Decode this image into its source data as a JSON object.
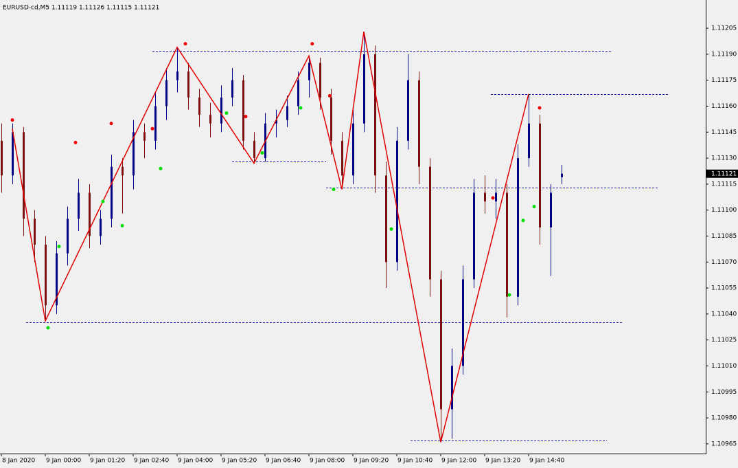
{
  "chart_data": {
    "type": "candlestick",
    "title": "EURUSD-cd,M5  1.11119 1.11126 1.11115 1.11121",
    "current_price": {
      "value": 1.11121,
      "label": "1.11121"
    },
    "categories": [
      "8 Jan 2020",
      null,
      null,
      null,
      "9 Jan 00:00",
      null,
      null,
      null,
      "9 Jan 01:20",
      null,
      null,
      null,
      "9 Jan 02:40",
      null,
      null,
      null,
      "9 Jan 04:00",
      null,
      null,
      null,
      "9 Jan 05:20",
      null,
      null,
      null,
      "9 Jan 06:40",
      null,
      null,
      null,
      "9 Jan 08:00",
      null,
      null,
      null,
      "9 Jan 09:20",
      null,
      null,
      null,
      "9 Jan 10:40",
      null,
      null,
      null,
      "9 Jan 12:00",
      null,
      null,
      null,
      "9 Jan 13:20",
      null,
      null,
      null,
      "9 Jan 14:40",
      null,
      null,
      null
    ],
    "open": [
      1.1114,
      1.1112,
      1.11145,
      1.11095,
      1.1108,
      1.11045,
      1.11075,
      1.11095,
      1.1111,
      1.11085,
      1.11095,
      1.11125,
      1.1112,
      1.11145,
      1.1114,
      1.1116,
      1.11175,
      1.1118,
      1.11165,
      1.11155,
      1.1115,
      1.11165,
      1.11175,
      1.1114,
      1.1113,
      1.1115,
      1.11152,
      1.1116,
      1.11175,
      1.11185,
      1.11165,
      1.1114,
      1.1112,
      1.1115,
      1.1119,
      1.1112,
      1.1107,
      1.1114,
      1.11175,
      1.11125,
      1.1106,
      1.10985,
      1.1101,
      1.1106,
      1.1111,
      1.11105,
      1.1111,
      1.1105,
      1.1113,
      1.1115,
      1.1109,
      1.11119
    ],
    "high": [
      1.1115,
      1.1115,
      1.11148,
      1.111,
      1.11085,
      1.11082,
      1.11102,
      1.11118,
      1.11115,
      1.111,
      1.11132,
      1.1113,
      1.11152,
      1.1115,
      1.11168,
      1.11182,
      1.11194,
      1.11185,
      1.1117,
      1.11162,
      1.11172,
      1.11182,
      1.11178,
      1.11145,
      1.11156,
      1.11158,
      1.11166,
      1.1118,
      1.11189,
      1.11188,
      1.1117,
      1.11145,
      1.11158,
      1.11203,
      1.11195,
      1.11128,
      1.11148,
      1.1119,
      1.1118,
      1.1113,
      1.11065,
      1.1102,
      1.11068,
      1.11118,
      1.1112,
      1.11118,
      1.11115,
      1.11138,
      1.11167,
      1.11155,
      1.11115,
      1.11126
    ],
    "low": [
      1.1111,
      1.11115,
      1.11085,
      1.1107,
      1.11036,
      1.1104,
      1.11068,
      1.11088,
      1.11078,
      1.1108,
      1.1109,
      1.11098,
      1.11112,
      1.1113,
      1.11135,
      1.11152,
      1.11168,
      1.11158,
      1.11148,
      1.11142,
      1.11145,
      1.1116,
      1.11135,
      1.11127,
      1.11128,
      1.11142,
      1.11148,
      1.11155,
      1.11165,
      1.11158,
      1.11132,
      1.11112,
      1.11115,
      1.11145,
      1.1111,
      1.11055,
      1.11065,
      1.11135,
      1.11115,
      1.1105,
      1.10966,
      1.10968,
      1.11005,
      1.11055,
      1.11098,
      1.11095,
      1.11038,
      1.11045,
      1.11125,
      1.1108,
      1.11062,
      1.11115
    ],
    "close": [
      1.1112,
      1.11145,
      1.11095,
      1.1108,
      1.11045,
      1.11075,
      1.11095,
      1.1111,
      1.11085,
      1.11095,
      1.11125,
      1.1112,
      1.11145,
      1.1114,
      1.1116,
      1.11175,
      1.1118,
      1.11165,
      1.11155,
      1.1115,
      1.11165,
      1.11175,
      1.1114,
      1.1113,
      1.1115,
      1.11152,
      1.1116,
      1.11175,
      1.11185,
      1.11165,
      1.1114,
      1.1112,
      1.1115,
      1.1119,
      1.1112,
      1.1107,
      1.1114,
      1.11175,
      1.11125,
      1.1106,
      1.10985,
      1.1101,
      1.1106,
      1.1111,
      1.11105,
      1.1111,
      1.1105,
      1.1113,
      1.1115,
      1.1109,
      1.1111,
      1.11121
    ],
    "up_color": "#000080",
    "down_color": "#7a1010",
    "zigzag": {
      "color": "#e00000",
      "x": [
        1,
        4,
        16,
        23,
        28,
        31,
        33,
        40,
        48
      ],
      "values": [
        1.11147,
        1.11036,
        1.11194,
        1.11127,
        1.11189,
        1.11112,
        1.11203,
        1.10966,
        1.11167
      ]
    },
    "levels": {
      "color": "#1a1aa8",
      "values": [
        1.11192,
        1.11167,
        1.11128,
        1.11113,
        1.11035,
        1.10967
      ]
    },
    "red_dots": {
      "color": "#ee0000",
      "x": [
        1,
        6.75,
        10,
        13.75,
        16.75,
        22.25,
        28.3,
        29.9,
        44.75,
        49
      ],
      "values": [
        1.11152,
        1.11139,
        1.1115,
        1.11147,
        1.11196,
        1.11154,
        1.11196,
        1.11166,
        1.11107,
        1.11159
      ]
    },
    "green_dots": {
      "color": "#00dd00",
      "x": [
        4.25,
        5.25,
        9.25,
        11,
        14.5,
        20.5,
        23.75,
        27.25,
        30.25,
        35.5,
        46.25,
        47.5,
        48.5
      ],
      "values": [
        1.11032,
        1.11079,
        1.11105,
        1.11091,
        1.11124,
        1.11156,
        1.11133,
        1.11159,
        1.11112,
        1.11089,
        1.11051,
        1.11094,
        1.11102
      ]
    },
    "ylim": [
      1.109594,
      1.112213
    ],
    "yticks": [
      1.10965,
      {
        "value": 1.1098,
        "label": "1.10980"
      },
      1.10995,
      {
        "value": 1.1101,
        "label": "1.11010"
      },
      1.11025,
      {
        "value": 1.1104,
        "label": "1.11040"
      },
      1.11055,
      {
        "value": 1.1107,
        "label": "1.11070"
      },
      1.11085,
      {
        "value": 1.111,
        "label": "1.11100"
      },
      1.11115,
      {
        "value": 1.1113,
        "label": "1.11130"
      },
      1.11145,
      {
        "value": 1.1116,
        "label": "1.11160"
      },
      1.11175,
      {
        "value": 1.1119,
        "label": "1.11190"
      },
      1.11205
    ]
  }
}
